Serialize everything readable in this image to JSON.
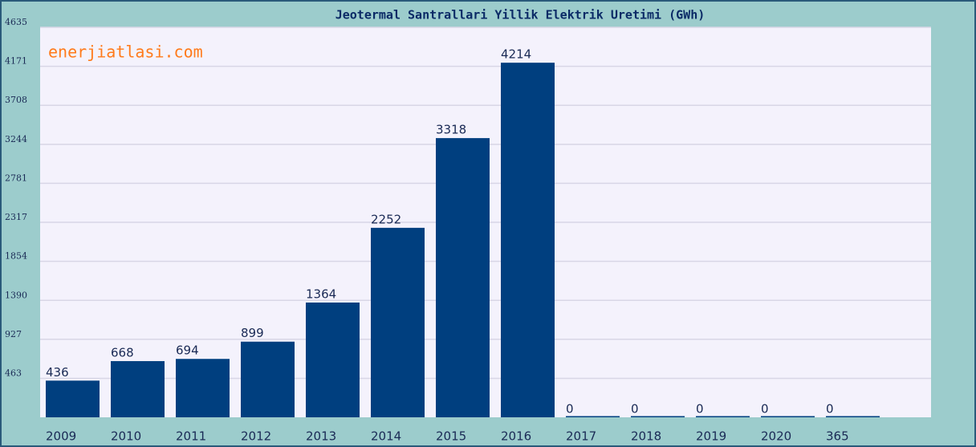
{
  "chart_data": {
    "type": "bar",
    "title": "Jeotermal Santrallari Yillik Elektrik Uretimi (GWh)",
    "watermark": "enerjiatlasi.com",
    "categories": [
      "2009",
      "2010",
      "2011",
      "2012",
      "2013",
      "2014",
      "2015",
      "2016",
      "2017",
      "2018",
      "2019",
      "2020",
      "365"
    ],
    "values": [
      436,
      668,
      694,
      899,
      1364,
      2252,
      3318,
      4214,
      0,
      0,
      0,
      0,
      0
    ],
    "color": "#003f7f",
    "ylim": [
      0,
      4635
    ],
    "yticks": [
      463,
      927,
      1390,
      1854,
      2317,
      2781,
      3244,
      3708,
      4171,
      4635
    ],
    "grid": true
  }
}
